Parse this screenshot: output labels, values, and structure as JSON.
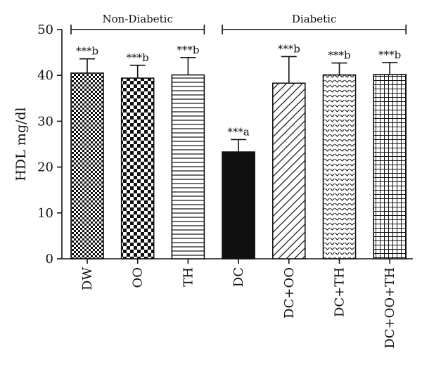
{
  "chart_data": {
    "type": "bar",
    "ylabel": "HDL mg/dl",
    "ylim": [
      0,
      50
    ],
    "yticks": [
      0,
      10,
      20,
      30,
      40,
      50
    ],
    "grid": false,
    "categories": [
      "DW",
      "OO",
      "TH",
      "DC",
      "DC+OO",
      "DC+TH",
      "DC+OO+TH"
    ],
    "values": [
      40.5,
      39.4,
      40.1,
      23.3,
      38.3,
      40.1,
      40.2
    ],
    "error_upper": [
      3.1,
      2.8,
      3.8,
      2.7,
      5.8,
      2.6,
      2.6
    ],
    "significance": [
      "***b",
      "***b",
      "***b",
      "***a",
      "***b",
      "***b",
      "***b"
    ],
    "patterns": [
      "checker-small",
      "checker-large",
      "horizontal-lines",
      "solid",
      "diagonal-lines",
      "chevron",
      "grid"
    ],
    "groups": [
      {
        "label": "Non-Diabetic",
        "from": 0,
        "to": 2
      },
      {
        "label": "Diabetic",
        "from": 3,
        "to": 6
      }
    ],
    "colors": {
      "ink": "#111111",
      "bar_fill": "#ffffff"
    }
  }
}
